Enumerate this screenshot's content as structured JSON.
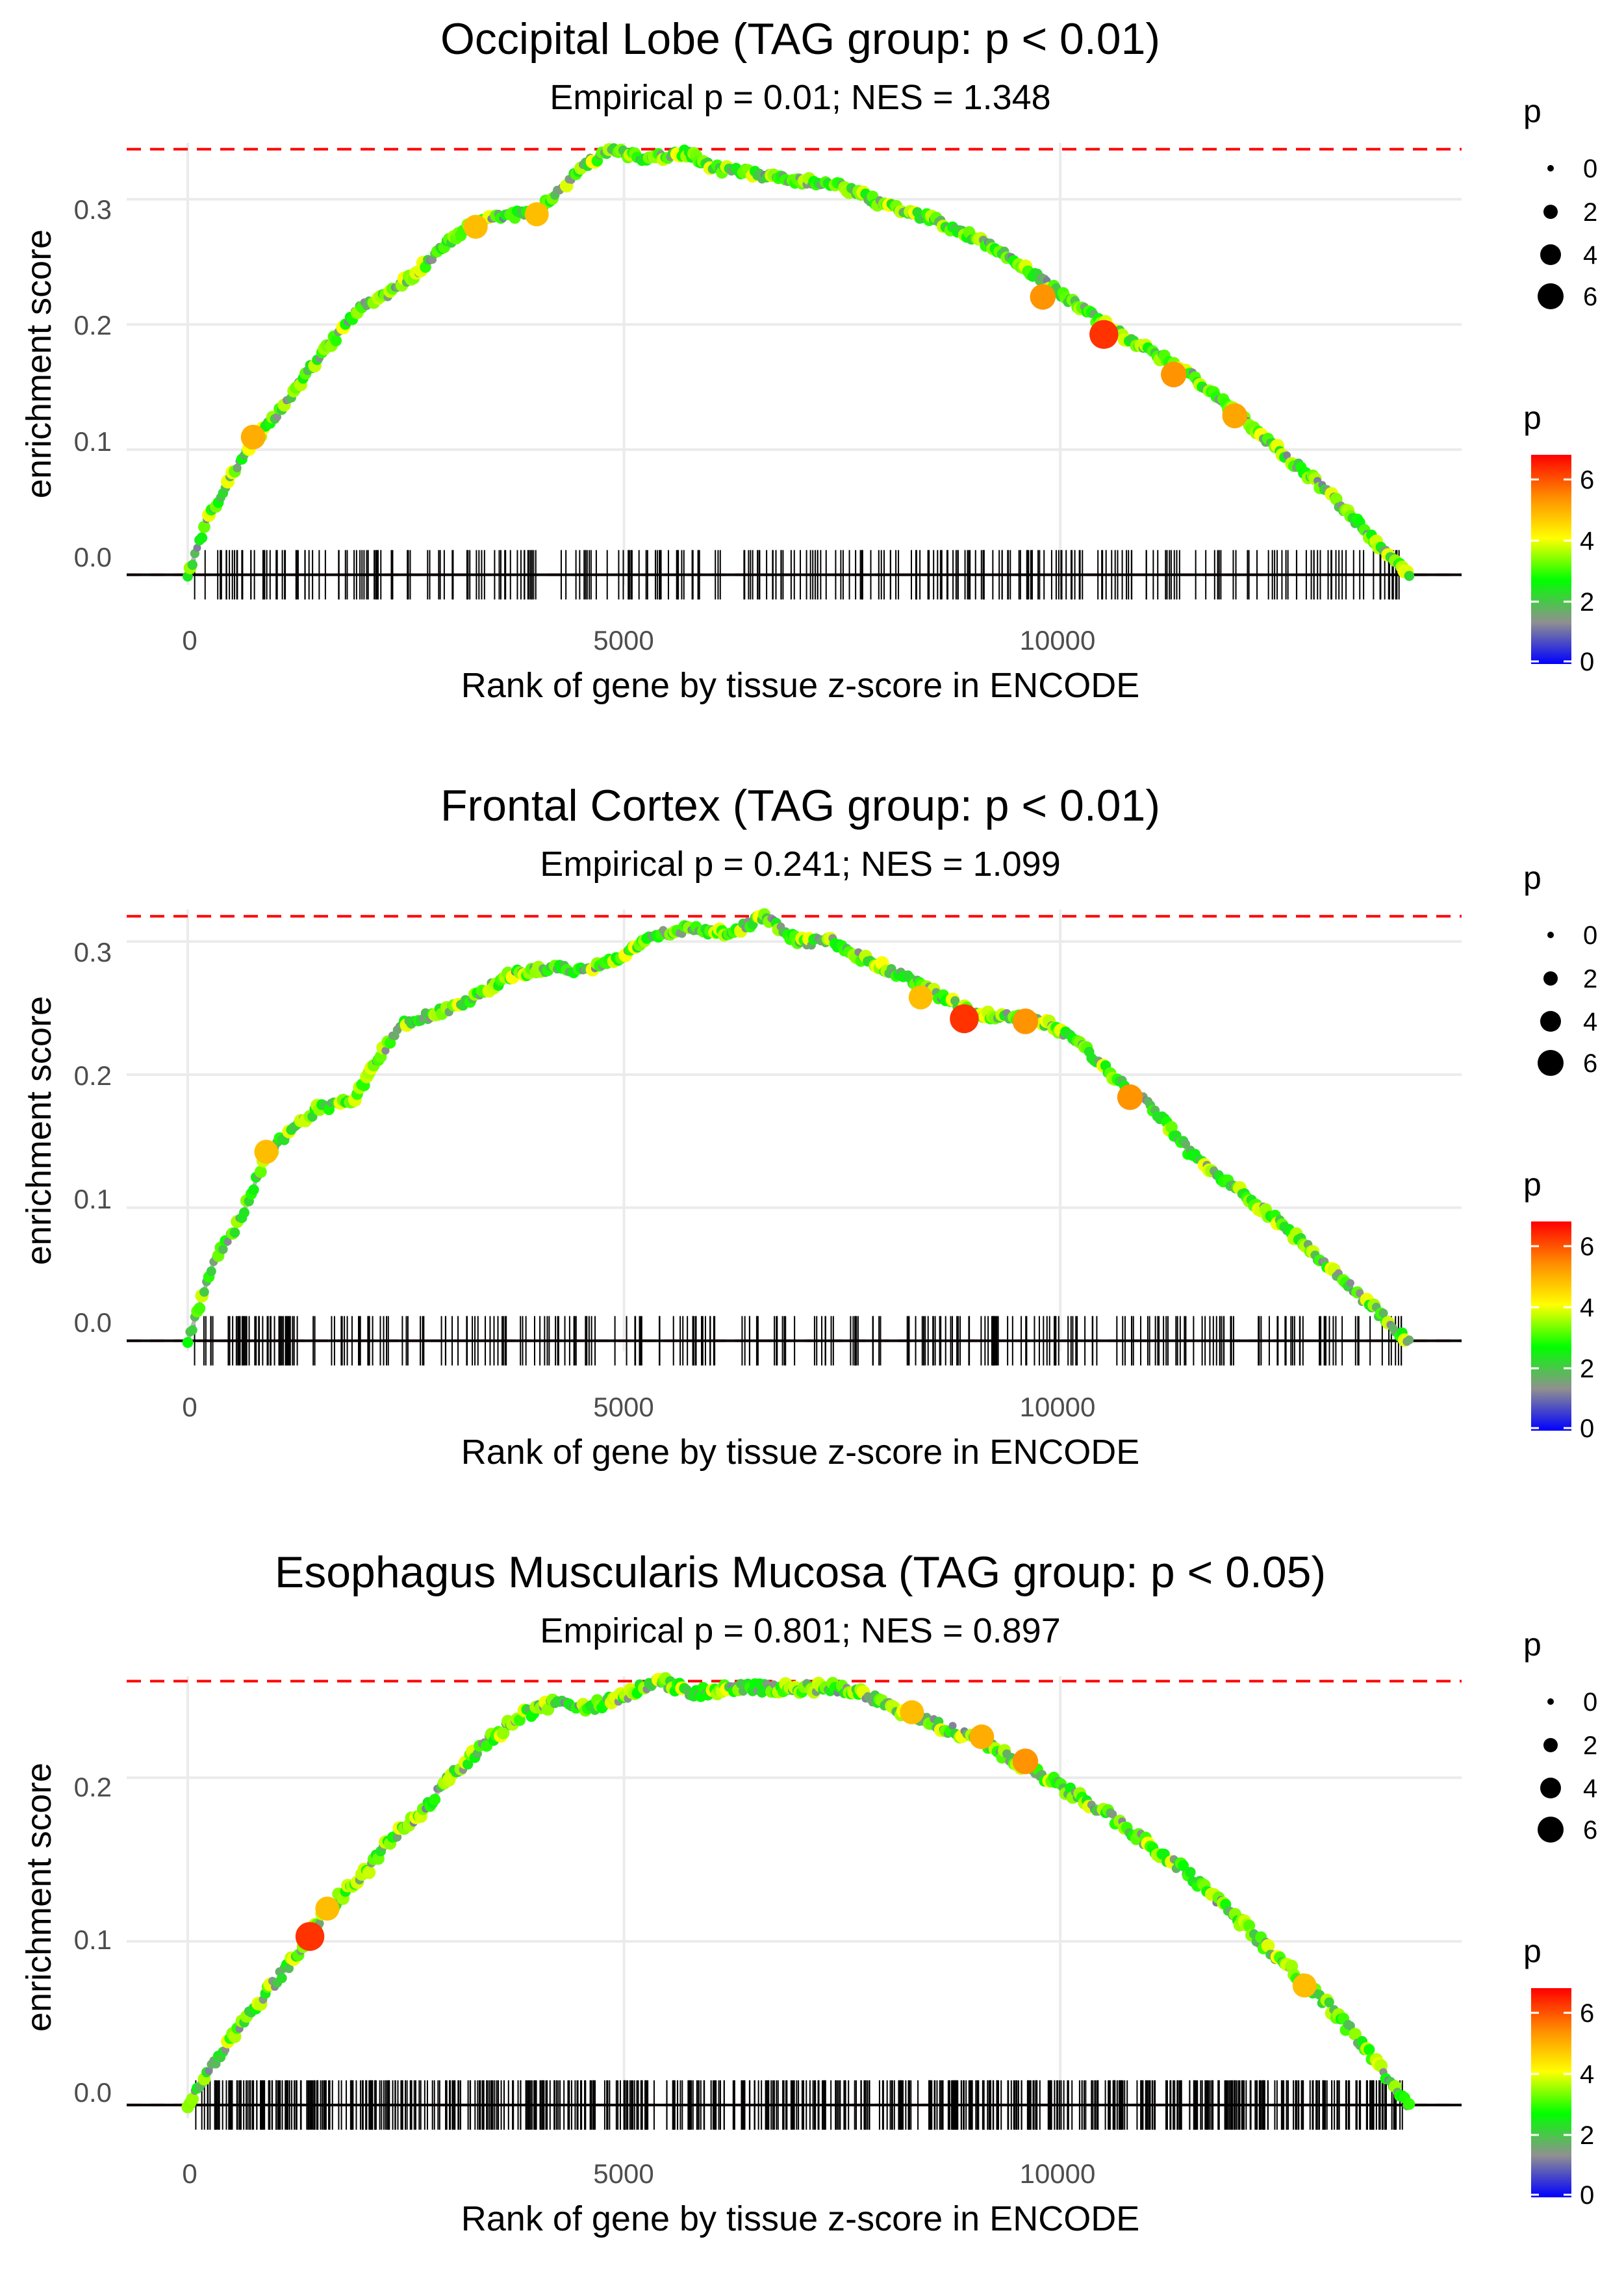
{
  "chart_data": [
    {
      "type": "line",
      "title": "Occipital Lobe (TAG group: p < 0.01)",
      "subtitle": "Empirical p = 0.01; NES = 1.348",
      "xlabel": "Rank of gene by tissue z-score in ENCODE",
      "ylabel": "enrichment score",
      "xlim": [
        -700,
        14600
      ],
      "ylim": [
        -0.008,
        0.345
      ],
      "x_ticks": [
        0,
        5000,
        10000
      ],
      "y_ticks": [
        0.0,
        0.1,
        0.2,
        0.3
      ],
      "max_es": 0.34,
      "n_genes": 14000,
      "curve": [
        [
          0,
          0.0
        ],
        [
          200,
          0.04
        ],
        [
          500,
          0.08
        ],
        [
          800,
          0.11
        ],
        [
          1100,
          0.135
        ],
        [
          1400,
          0.165
        ],
        [
          1700,
          0.19
        ],
        [
          2000,
          0.215
        ],
        [
          2300,
          0.225
        ],
        [
          2600,
          0.24
        ],
        [
          2900,
          0.26
        ],
        [
          3200,
          0.278
        ],
        [
          3500,
          0.285
        ],
        [
          4000,
          0.29
        ],
        [
          4300,
          0.31
        ],
        [
          4600,
          0.33
        ],
        [
          4900,
          0.34
        ],
        [
          5200,
          0.332
        ],
        [
          5500,
          0.335
        ],
        [
          5700,
          0.338
        ],
        [
          6000,
          0.325
        ],
        [
          6500,
          0.32
        ],
        [
          7000,
          0.315
        ],
        [
          7500,
          0.31
        ],
        [
          8000,
          0.295
        ],
        [
          8500,
          0.285
        ],
        [
          9000,
          0.27
        ],
        [
          9500,
          0.25
        ],
        [
          10000,
          0.225
        ],
        [
          10500,
          0.2
        ],
        [
          11000,
          0.18
        ],
        [
          11500,
          0.16
        ],
        [
          12000,
          0.13
        ],
        [
          12500,
          0.1
        ],
        [
          13000,
          0.07
        ],
        [
          13500,
          0.035
        ],
        [
          14000,
          0.0
        ]
      ],
      "highlights": [
        {
          "x": 750,
          "y": 0.11,
          "p": 5.2
        },
        {
          "x": 3300,
          "y": 0.278,
          "p": 5.0
        },
        {
          "x": 4000,
          "y": 0.288,
          "p": 5.0
        },
        {
          "x": 9800,
          "y": 0.222,
          "p": 5.5
        },
        {
          "x": 10500,
          "y": 0.192,
          "p": 6.5
        },
        {
          "x": 11300,
          "y": 0.16,
          "p": 5.5
        },
        {
          "x": 12000,
          "y": 0.127,
          "p": 5.3
        }
      ],
      "sticks_seed": 11,
      "sticks_count": 300
    },
    {
      "type": "line",
      "title": "Frontal Cortex (TAG group: p < 0.01)",
      "subtitle": "Empirical p = 0.241; NES = 1.099",
      "xlabel": "Rank of gene by tissue z-score in ENCODE",
      "ylabel": "enrichment score",
      "xlim": [
        -700,
        14600
      ],
      "ylim": [
        -0.008,
        0.324
      ],
      "x_ticks": [
        0,
        5000,
        10000
      ],
      "y_ticks": [
        0.0,
        0.1,
        0.2,
        0.3
      ],
      "max_es": 0.319,
      "n_genes": 14000,
      "curve": [
        [
          0,
          0.0
        ],
        [
          300,
          0.06
        ],
        [
          600,
          0.09
        ],
        [
          900,
          0.14
        ],
        [
          1200,
          0.16
        ],
        [
          1500,
          0.175
        ],
        [
          1900,
          0.18
        ],
        [
          2200,
          0.215
        ],
        [
          2500,
          0.24
        ],
        [
          2800,
          0.245
        ],
        [
          3200,
          0.255
        ],
        [
          3700,
          0.275
        ],
        [
          4200,
          0.28
        ],
        [
          4600,
          0.278
        ],
        [
          5000,
          0.29
        ],
        [
          5400,
          0.305
        ],
        [
          5800,
          0.31
        ],
        [
          6200,
          0.305
        ],
        [
          6600,
          0.319
        ],
        [
          7000,
          0.3
        ],
        [
          7400,
          0.3
        ],
        [
          7800,
          0.285
        ],
        [
          8200,
          0.275
        ],
        [
          8600,
          0.26
        ],
        [
          9000,
          0.245
        ],
        [
          9400,
          0.245
        ],
        [
          9800,
          0.24
        ],
        [
          10200,
          0.225
        ],
        [
          10600,
          0.2
        ],
        [
          11000,
          0.18
        ],
        [
          11500,
          0.14
        ],
        [
          12000,
          0.115
        ],
        [
          12500,
          0.09
        ],
        [
          13000,
          0.06
        ],
        [
          13500,
          0.03
        ],
        [
          14000,
          0.0
        ]
      ],
      "highlights": [
        {
          "x": 900,
          "y": 0.142,
          "p": 5.0
        },
        {
          "x": 8900,
          "y": 0.242,
          "p": 6.5
        },
        {
          "x": 9600,
          "y": 0.24,
          "p": 5.5
        },
        {
          "x": 10800,
          "y": 0.183,
          "p": 5.5
        },
        {
          "x": 8400,
          "y": 0.258,
          "p": 5.0
        }
      ],
      "sticks_seed": 23,
      "sticks_count": 300
    },
    {
      "type": "line",
      "title": "Esophagus Muscularis Mucosa (TAG group: p < 0.05)",
      "subtitle": "Empirical p = 0.801; NES = 0.897",
      "xlabel": "Rank of gene by tissue z-score in ENCODE",
      "ylabel": "enrichment score",
      "xlim": [
        -700,
        14600
      ],
      "ylim": [
        -0.008,
        0.262
      ],
      "x_ticks": [
        0,
        5000,
        10000
      ],
      "y_ticks": [
        0.0,
        0.1,
        0.2
      ],
      "max_es": 0.259,
      "n_genes": 14000,
      "curve": [
        [
          0,
          0.0
        ],
        [
          300,
          0.025
        ],
        [
          700,
          0.055
        ],
        [
          1000,
          0.075
        ],
        [
          1300,
          0.095
        ],
        [
          1600,
          0.12
        ],
        [
          2000,
          0.14
        ],
        [
          2300,
          0.16
        ],
        [
          2700,
          0.18
        ],
        [
          3000,
          0.2
        ],
        [
          3400,
          0.22
        ],
        [
          3800,
          0.238
        ],
        [
          4200,
          0.245
        ],
        [
          4600,
          0.243
        ],
        [
          5000,
          0.25
        ],
        [
          5400,
          0.259
        ],
        [
          5800,
          0.252
        ],
        [
          6200,
          0.255
        ],
        [
          6600,
          0.255
        ],
        [
          7000,
          0.255
        ],
        [
          7400,
          0.255
        ],
        [
          7800,
          0.25
        ],
        [
          8200,
          0.24
        ],
        [
          8600,
          0.232
        ],
        [
          9000,
          0.225
        ],
        [
          9500,
          0.21
        ],
        [
          10000,
          0.195
        ],
        [
          10500,
          0.18
        ],
        [
          11000,
          0.16
        ],
        [
          11500,
          0.14
        ],
        [
          12000,
          0.115
        ],
        [
          12500,
          0.09
        ],
        [
          13000,
          0.065
        ],
        [
          13500,
          0.035
        ],
        [
          14000,
          0.0
        ]
      ],
      "highlights": [
        {
          "x": 1400,
          "y": 0.103,
          "p": 6.5
        },
        {
          "x": 1600,
          "y": 0.12,
          "p": 5.0
        },
        {
          "x": 8300,
          "y": 0.24,
          "p": 5.0
        },
        {
          "x": 9100,
          "y": 0.225,
          "p": 5.2
        },
        {
          "x": 9600,
          "y": 0.21,
          "p": 5.5
        },
        {
          "x": 12800,
          "y": 0.073,
          "p": 5.0
        }
      ],
      "sticks_seed": 37,
      "sticks_count": 700
    }
  ],
  "legend": {
    "size_title": "p",
    "size_labels": [
      "0",
      "2",
      "4",
      "6"
    ],
    "color_title": "p",
    "color_labels": [
      "6",
      "4",
      "2",
      "0"
    ],
    "colors": [
      "#0000ff",
      "#909090",
      "#00ff00",
      "#ffff00",
      "#ff8c00",
      "#ff0000"
    ]
  }
}
